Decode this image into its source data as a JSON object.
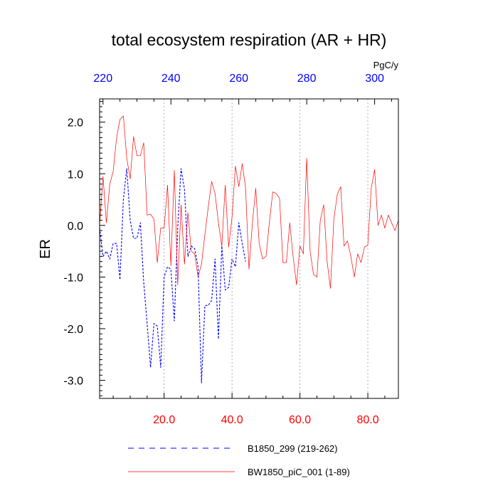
{
  "chart_data": {
    "type": "line",
    "title": "total ecosystem respiration (AR + HR)",
    "ylabel": "ER",
    "units": "PgC/y",
    "xlim": [
      1,
      89
    ],
    "ylim": [
      -3.35,
      2.45
    ],
    "bottom_axis": {
      "ticks": [
        20,
        40,
        60,
        80
      ],
      "labels": [
        "20.0",
        "40.0",
        "60.0",
        "80.0"
      ],
      "color": "#ff0000"
    },
    "top_axis": {
      "ticks": [
        220,
        240,
        260,
        280,
        300
      ],
      "labels": [
        "220",
        "240",
        "260",
        "280",
        "300"
      ],
      "range": [
        219,
        307
      ],
      "color": "#0000ff"
    },
    "left_axis": {
      "ticks": [
        2,
        1,
        0,
        -1,
        -2,
        -3
      ],
      "labels": [
        "2.0",
        "1.0",
        "0.0",
        "-1.0",
        "-2.0",
        "-3.0"
      ]
    },
    "vertical_grid": true,
    "series": [
      {
        "name": "B1850_299 (219-262)",
        "color": "#0000ff",
        "style": "dashed",
        "x": [
          1,
          2,
          3,
          4,
          5,
          6,
          7,
          8,
          9,
          10,
          11,
          12,
          13,
          14,
          15,
          16,
          17,
          18,
          19,
          20,
          21,
          22,
          23,
          24,
          25,
          26,
          27,
          28,
          29,
          30,
          31,
          32,
          33,
          34,
          35,
          36,
          37,
          38,
          39,
          40,
          41,
          42,
          43,
          44
        ],
        "values": [
          -0.05,
          -0.6,
          -0.5,
          -0.65,
          -0.35,
          -0.35,
          -1.05,
          0.5,
          1.1,
          0.1,
          -0.25,
          -0.25,
          0.05,
          -1.1,
          -1.9,
          -2.75,
          -1.9,
          -1.95,
          -2.75,
          -1.0,
          -0.8,
          -0.85,
          -1.85,
          -0.05,
          1.1,
          0.7,
          -0.6,
          -0.4,
          -0.45,
          -0.8,
          -3.05,
          -1.55,
          -1.55,
          -1.45,
          -0.65,
          -2.2,
          -0.4,
          -1.25,
          -1.2,
          -0.65,
          -0.8,
          0.05,
          -0.35,
          -0.7
        ]
      },
      {
        "name": "BW1850_piC_001 (1-89)",
        "color": "#ff0000",
        "style": "solid",
        "x": [
          1,
          2,
          3,
          4,
          5,
          6,
          7,
          8,
          9,
          10,
          11,
          12,
          13,
          14,
          15,
          16,
          17,
          18,
          19,
          20,
          21,
          22,
          23,
          24,
          25,
          26,
          27,
          28,
          29,
          30,
          31,
          32,
          33,
          34,
          35,
          36,
          37,
          38,
          39,
          40,
          41,
          42,
          43,
          44,
          45,
          46,
          47,
          48,
          49,
          50,
          51,
          52,
          53,
          54,
          55,
          56,
          57,
          58,
          59,
          60,
          61,
          62,
          63,
          64,
          65,
          66,
          67,
          68,
          69,
          70,
          71,
          72,
          73,
          74,
          75,
          76,
          77,
          78,
          79,
          80,
          81,
          82,
          83,
          84,
          85,
          86,
          87,
          88,
          89
        ],
        "values": [
          0.0,
          0.95,
          0.05,
          0.8,
          1.05,
          1.7,
          2.05,
          2.12,
          1.3,
          0.9,
          1.72,
          1.35,
          1.35,
          1.6,
          0.2,
          0.22,
          0.12,
          -0.72,
          -0.05,
          -0.05,
          0.78,
          -0.78,
          1.07,
          -1.15,
          0.4,
          -0.75,
          0.25,
          -0.5,
          -0.55,
          -1.0,
          -0.75,
          -0.18,
          0.35,
          0.85,
          0.62,
          0.05,
          -0.4,
          0.78,
          -0.42,
          0.15,
          1.15,
          0.75,
          1.2,
          0.72,
          -0.85,
          0.05,
          0.72,
          -0.35,
          -0.65,
          -0.6,
          0.05,
          0.65,
          0.62,
          0.52,
          -0.72,
          -0.72,
          0.05,
          -0.6,
          -1.15,
          -0.4,
          -0.55,
          1.3,
          -0.5,
          -0.95,
          -1.0,
          0.1,
          0.4,
          -0.7,
          -1.22,
          0.12,
          0.6,
          0.75,
          -0.4,
          -0.3,
          -0.6,
          -1.0,
          -0.55,
          -0.72,
          -0.42,
          -0.38,
          0.72,
          1.08,
          0.0,
          0.2,
          -0.05,
          0.2,
          0.05,
          -0.1,
          0.1
        ]
      }
    ],
    "legend": {
      "placement": "bottom",
      "entries": [
        "B1850_299 (219-262)",
        "BW1850_piC_001 (1-89)"
      ]
    }
  }
}
